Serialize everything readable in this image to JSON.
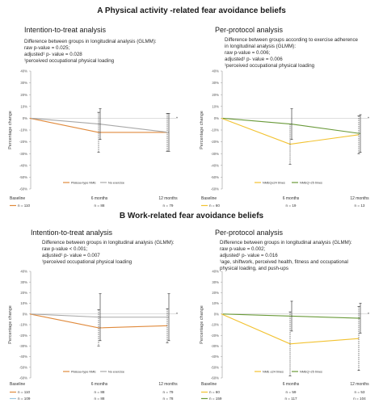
{
  "sections": [
    {
      "title": "A  Physical activity -related fear avoidance beliefs"
    },
    {
      "title": "B  Work-related fear avoidance beliefs"
    }
  ],
  "panels": [
    {
      "title": "Intention-to-treat analysis",
      "stats": [
        "Difference between groups in longitudinal analysis (GLMM):",
        "raw p-value = 0.025;",
        "adjusted¹ p- value = 0.028",
        "¹perceived occupational physical loading"
      ],
      "legend_rows": [
        {
          "color": "#e08a3c",
          "label": "n = 110",
          "counts": [
            "n = 88",
            "n = 79"
          ]
        },
        {
          "color": "#9ec7e0",
          "label": "n = 109",
          "counts": [
            "n = 88",
            "n = 78"
          ]
        }
      ]
    },
    {
      "title": "Per-protocol analysis",
      "stats": [
        "Difference between groups according to exercise adherence",
        "in longitudinal analysis (GLMM):",
        "raw p-value = 0.006;",
        "adjusted¹ p- value = 0.006",
        "¹perceived occupational physical loading"
      ],
      "legend_rows": [
        {
          "color": "#f2c230",
          "label": "n = 60",
          "counts": [
            "n = 19",
            "n = 13"
          ]
        },
        {
          "color": "#6a9a3a",
          "label": "n = 159",
          "counts": [
            "n = 117",
            "n = 104"
          ]
        }
      ]
    },
    {
      "title": "Intention-to-treat analysis",
      "stats": [
        "Difference between groups in longitudinal analysis (GLMM):",
        "raw p-value < 0.001;",
        "adjusted¹ p- value = 0.007",
        "¹perceived occupational physical loading"
      ],
      "legend_rows": [
        {
          "color": "#e08a3c",
          "label": "n = 110",
          "counts": [
            "n = 88",
            "n = 79"
          ]
        },
        {
          "color": "#9ec7e0",
          "label": "n = 109",
          "counts": [
            "n = 88",
            "n = 78"
          ]
        }
      ]
    },
    {
      "title": "Per-protocol analysis",
      "stats": [
        "Difference between groups in longitudinal analysis (GLMM):",
        "raw p-value = 0.002;",
        "adjusted¹ p- value = 0.016",
        "¹age, shiftwork, perceived health, fitness and occupational",
        "physical loading, and push-ups"
      ],
      "legend_rows": [
        {
          "color": "#f2c230",
          "label": "n = 60",
          "counts": [
            "n = 59",
            "n = 53"
          ]
        },
        {
          "color": "#6a9a3a",
          "label": "n = 159",
          "counts": [
            "n = 117",
            "n = 104"
          ]
        }
      ]
    }
  ],
  "chart_data": [
    {
      "type": "line",
      "ylabel": "Percentage change",
      "categories": [
        "Baseline",
        "6 months",
        "12 months"
      ],
      "ylim": [
        -60,
        40
      ],
      "yticks": [
        40,
        30,
        20,
        10,
        0,
        -10,
        -20,
        -30,
        -40,
        -50,
        -60
      ],
      "ytick_labels": [
        "40%",
        "30%",
        "20%",
        "10%",
        "0%",
        "-10%",
        "-20%",
        "-30%",
        "-40%",
        "-50%",
        "-60%"
      ],
      "series": [
        {
          "name": "Plateau-type NME",
          "color": "#e08a3c",
          "values": [
            0,
            -12,
            -12
          ],
          "err": [
            null,
            17,
            16
          ]
        },
        {
          "name": "No exercise",
          "color": "#a8a8a8",
          "values": [
            0,
            -5,
            -12
          ],
          "err": [
            null,
            13,
            16
          ]
        }
      ],
      "star_at_end": true
    },
    {
      "type": "line",
      "ylabel": "Percentage change",
      "categories": [
        "Baseline",
        "6 months",
        "12 months"
      ],
      "ylim": [
        -60,
        40
      ],
      "yticks": [
        40,
        30,
        20,
        10,
        0,
        -10,
        -20,
        -30,
        -40,
        -50,
        -60
      ],
      "ytick_labels": [
        "40%",
        "30%",
        "20%",
        "10%",
        "0%",
        "-10%",
        "-20%",
        "-30%",
        "-40%",
        "-50%",
        "-60%"
      ],
      "series": [
        {
          "name": "NMEQ≤24 times",
          "color": "#f2c230",
          "values": [
            0,
            -22,
            -14
          ],
          "err": [
            null,
            17,
            16
          ]
        },
        {
          "name": "NMEQ>25 times",
          "color": "#6a9a3a",
          "values": [
            0,
            -5,
            -13
          ],
          "err": [
            null,
            13,
            16
          ]
        }
      ],
      "star_at_end": true
    },
    {
      "type": "line",
      "ylabel": "Percentage change",
      "categories": [
        "Baseline",
        "6 months",
        "12 months"
      ],
      "ylim": [
        -60,
        40
      ],
      "yticks": [
        40,
        30,
        20,
        10,
        0,
        -10,
        -20,
        -30,
        -40,
        -50,
        -60
      ],
      "ytick_labels": [
        "40%",
        "30%",
        "20%",
        "10%",
        "0%",
        "-10%",
        "-20%",
        "-30%",
        "-40%",
        "-50%",
        "-60%"
      ],
      "series": [
        {
          "name": "Plateau-type NME",
          "color": "#e08a3c",
          "values": [
            0,
            -13,
            -11
          ],
          "err": [
            null,
            17,
            16
          ]
        },
        {
          "name": "No exercise",
          "color": "#a8a8a8",
          "values": [
            0,
            -3,
            -3
          ],
          "err": [
            null,
            22,
            22
          ]
        }
      ],
      "star_at_end": true
    },
    {
      "type": "line",
      "ylabel": "Percentage change",
      "categories": [
        "Baseline",
        "6 months",
        "12 months"
      ],
      "ylim": [
        -60,
        40
      ],
      "yticks": [
        40,
        30,
        20,
        10,
        0,
        -10,
        -20,
        -30,
        -40,
        -50,
        -60
      ],
      "ytick_labels": [
        "40%",
        "30%",
        "20%",
        "10%",
        "0%",
        "-10%",
        "-20%",
        "-30%",
        "-40%",
        "-50%",
        "-60%"
      ],
      "series": [
        {
          "name": "NME ≤24 times",
          "color": "#f2c230",
          "values": [
            0,
            -28,
            -23
          ],
          "err": [
            null,
            30,
            30
          ]
        },
        {
          "name": "NMEQ>25 times",
          "color": "#6a9a3a",
          "values": [
            0,
            -2,
            -4
          ],
          "err": [
            null,
            14,
            14
          ]
        }
      ],
      "star_at_end": true
    }
  ]
}
